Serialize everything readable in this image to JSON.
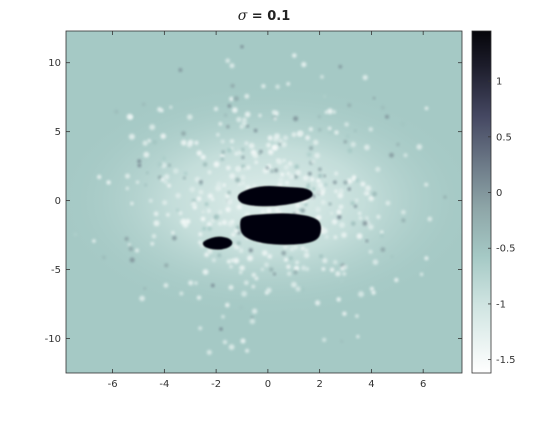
{
  "title": {
    "symbol": "σ",
    "rest": " = 0.1"
  },
  "chart_data": {
    "type": "heatmap",
    "title": "σ = 0.1",
    "xlabel": "",
    "ylabel": "",
    "xlim": [
      -7.8,
      7.5
    ],
    "ylim": [
      -12.5,
      12.3
    ],
    "xticks": [
      -6,
      -4,
      -2,
      0,
      2,
      4,
      6
    ],
    "yticks": [
      -10,
      -5,
      0,
      5,
      10
    ],
    "colorbar": {
      "range": [
        -1.62,
        1.45
      ],
      "ticks": [
        1,
        0.5,
        0,
        -0.5,
        -1,
        -1.5
      ],
      "colormap": "bone (reversed)",
      "low_color": "#ffffff",
      "high_color": "#05050a"
    },
    "background_value": -1.05,
    "blobs": [
      {
        "x": 0.3,
        "y": 0.9,
        "value": 1.45
      },
      {
        "x": 1.0,
        "y": -2.1,
        "value": 1.45
      },
      {
        "x": -1.9,
        "y": -3.1,
        "value": 1.45
      }
    ],
    "scatter_cloud": {
      "center": [
        0,
        0
      ],
      "spread": 7.5,
      "values": "-1.6 to 0.3"
    }
  }
}
